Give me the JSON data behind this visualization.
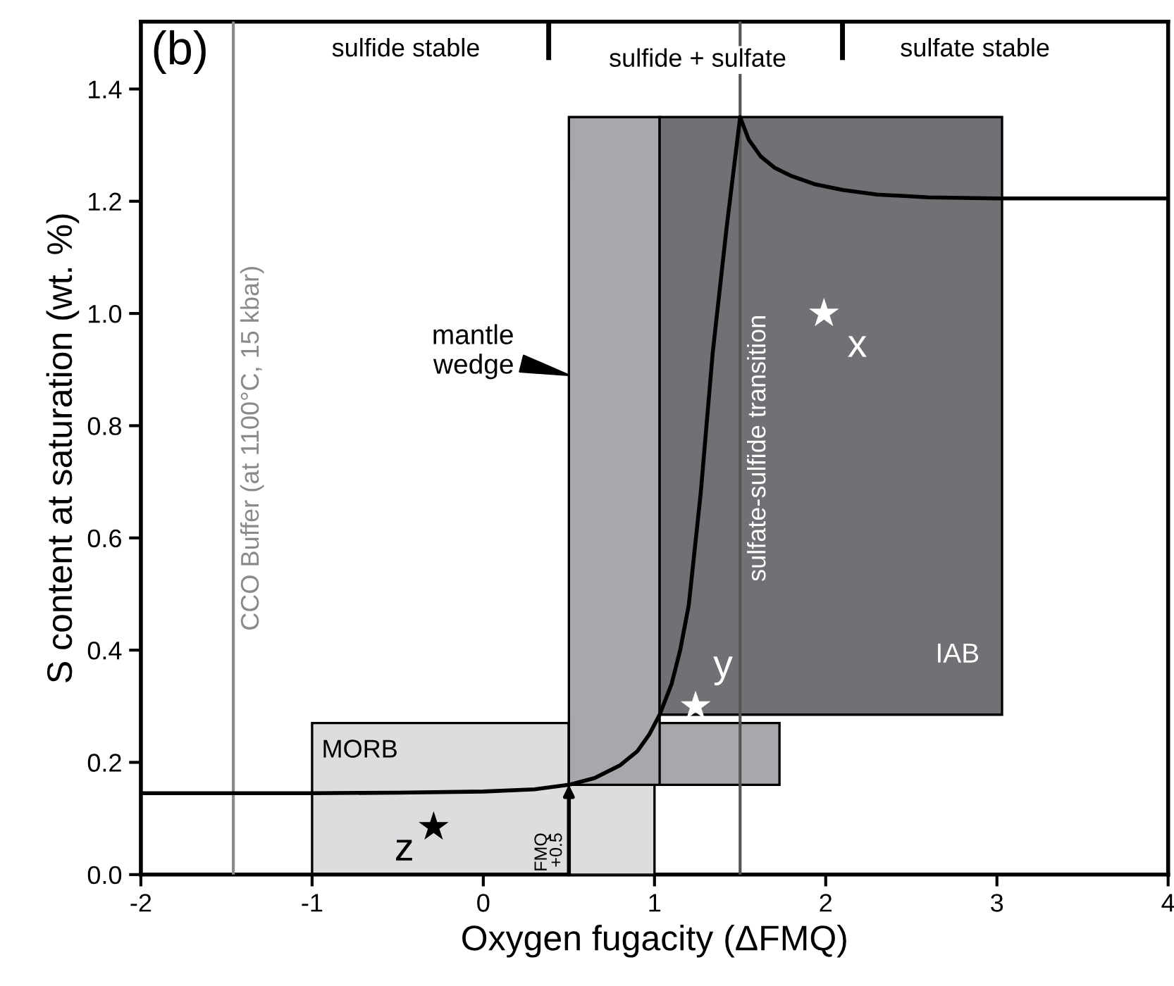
{
  "chart_data": {
    "type": "area",
    "xlabel": "Oxygen fugacity (ΔFMQ)",
    "ylabel": "S content at saturation (wt. %)",
    "xlim": [
      -2,
      4
    ],
    "xticks": [
      -2,
      -1,
      0,
      1,
      2,
      3,
      4
    ],
    "ylim": [
      0,
      1.52
    ],
    "yticks": [
      {
        "value": 0,
        "label": "0.0"
      },
      {
        "value": 0.2,
        "label": "0.2"
      },
      {
        "value": 0.4,
        "label": "0.4"
      },
      {
        "value": 0.6,
        "label": "0.6"
      },
      {
        "value": 0.8,
        "label": "0.8"
      },
      {
        "value": 1.0,
        "label": "1.0"
      },
      {
        "value": 1.2,
        "label": "1.2"
      },
      {
        "value": 1.4,
        "label": "1.4"
      }
    ],
    "grid": false,
    "series": [
      {
        "color": "#dcdddf",
        "x": [
          -1,
          -1,
          0.5,
          0.5
        ],
        "values": [
          0,
          0.27,
          0.27,
          0
        ]
      },
      {
        "color": "#dcdddf",
        "x": [
          0.5,
          0.5,
          1.0,
          1.0
        ],
        "values": [
          0,
          0.16,
          0.16,
          0
        ]
      },
      {
        "color": "#a7a8ac",
        "x": [
          0.5,
          0.5,
          1.73,
          1.73
        ],
        "values": [
          0.16,
          0.27,
          0.27,
          0.16
        ]
      },
      {
        "color": "#a7a8ac",
        "x": [
          0.5,
          0.5,
          1.03,
          1.03
        ],
        "values": [
          0.16,
          1.35,
          1.35,
          0.16
        ]
      },
      {
        "color": "#707175",
        "x": [
          1.03,
          1.03,
          3.03,
          3.03
        ],
        "values": [
          0.285,
          1.35,
          1.35,
          0.285
        ]
      },
      {
        "type": "line",
        "color": "#000000",
        "x": [
          -2,
          -1,
          -0.5,
          0,
          0.3,
          0.5,
          0.65,
          0.8,
          0.9,
          0.97,
          1.03,
          1.1,
          1.15,
          1.2,
          1.27,
          1.34,
          1.42,
          1.48,
          1.5,
          1.55,
          1.62,
          1.7,
          1.8,
          1.94,
          2.1,
          2.3,
          2.6,
          3.0,
          4.0
        ],
        "values": [
          0.145,
          0.145,
          0.146,
          0.148,
          0.152,
          0.16,
          0.172,
          0.195,
          0.22,
          0.25,
          0.285,
          0.34,
          0.4,
          0.48,
          0.68,
          0.93,
          1.15,
          1.3,
          1.35,
          1.31,
          1.28,
          1.26,
          1.245,
          1.23,
          1.22,
          1.212,
          1.207,
          1.205,
          1.205
        ]
      },
      {
        "type": "scatter",
        "marker": "star",
        "x": [
          -0.29,
          1.24,
          1.99
        ],
        "values": [
          0.085,
          0.3,
          1.0
        ],
        "colors": [
          "#000000",
          "#ffffff",
          "#ffffff"
        ]
      }
    ],
    "ref_lines": [
      {
        "axis": "x",
        "value": -1.46,
        "label": "CCO Buffer (at 1100°C, 15 kbar)",
        "color": "#8a8a8a"
      },
      {
        "axis": "x",
        "value": 1.5,
        "label": "sulfate-sulfide transition",
        "color": "#555555"
      }
    ],
    "annotations": [
      "(b)",
      "sulfide stable",
      "sulfide + sulfate",
      "sulfate stable",
      "MORB",
      {
        "text": "mantle\nwedge",
        "x": 0.5,
        "y": 0.89
      },
      "IAB",
      {
        "text": "FMQ\n+0.5",
        "x": 0.5,
        "y": 0.16
      },
      "z",
      "y",
      "x"
    ]
  }
}
